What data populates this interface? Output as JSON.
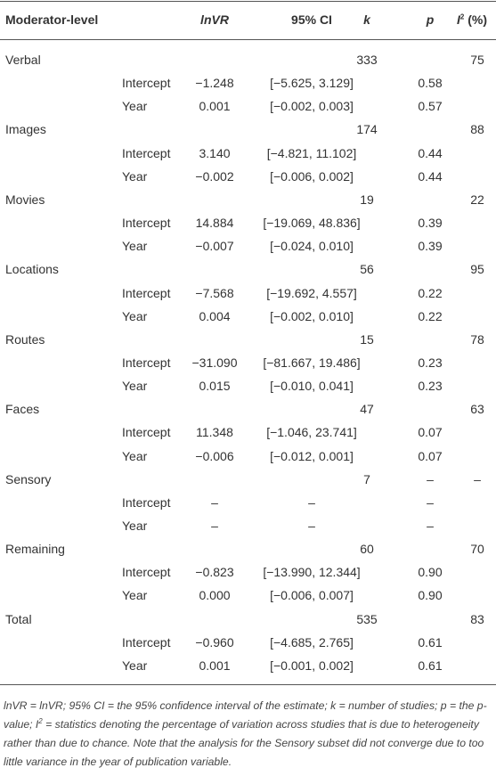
{
  "table": {
    "header": {
      "moderator": "Moderator-level",
      "lnvr": "lnVR",
      "ci": "95% CI",
      "k": "k",
      "p": "p",
      "i2": {
        "main": "I",
        "sup": "2",
        "rest": " (%)"
      }
    },
    "groups": [
      {
        "name": "Verbal",
        "k": "333",
        "i2": "75",
        "rows": [
          {
            "label": "Intercept",
            "lnvr": "−1.248",
            "ci": "[−5.625, 3.129]",
            "p": "0.58"
          },
          {
            "label": "Year",
            "lnvr": "0.001",
            "ci": "[−0.002, 0.003]",
            "p": "0.57"
          }
        ]
      },
      {
        "name": "Images",
        "k": "174",
        "i2": "88",
        "rows": [
          {
            "label": "Intercept",
            "lnvr": "3.140",
            "ci": "[−4.821, 11.102]",
            "p": "0.44"
          },
          {
            "label": "Year",
            "lnvr": "−0.002",
            "ci": "[−0.006, 0.002]",
            "p": "0.44"
          }
        ]
      },
      {
        "name": "Movies",
        "k": "19",
        "i2": "22",
        "rows": [
          {
            "label": "Intercept",
            "lnvr": "14.884",
            "ci": "[−19.069, 48.836]",
            "p": "0.39"
          },
          {
            "label": "Year",
            "lnvr": "−0.007",
            "ci": "[−0.024, 0.010]",
            "p": "0.39"
          }
        ]
      },
      {
        "name": "Locations",
        "k": "56",
        "i2": "95",
        "rows": [
          {
            "label": "Intercept",
            "lnvr": "−7.568",
            "ci": "[−19.692, 4.557]",
            "p": "0.22"
          },
          {
            "label": "Year",
            "lnvr": "0.004",
            "ci": "[−0.002, 0.010]",
            "p": "0.22"
          }
        ]
      },
      {
        "name": "Routes",
        "k": "15",
        "i2": "78",
        "rows": [
          {
            "label": "Intercept",
            "lnvr": "−31.090",
            "ci": "[−81.667, 19.486]",
            "p": "0.23"
          },
          {
            "label": "Year",
            "lnvr": "0.015",
            "ci": "[−0.010, 0.041]",
            "p": "0.23"
          }
        ]
      },
      {
        "name": "Faces",
        "k": "47",
        "i2": "63",
        "rows": [
          {
            "label": "Intercept",
            "lnvr": "11.348",
            "ci": "[−1.046, 23.741]",
            "p": "0.07"
          },
          {
            "label": "Year",
            "lnvr": "−0.006",
            "ci": "[−0.012, 0.001]",
            "p": "0.07"
          }
        ]
      },
      {
        "name": "Sensory",
        "k": "7",
        "p": "–",
        "i2": "–",
        "rows": [
          {
            "label": "Intercept",
            "lnvr": "–",
            "ci": "–",
            "p": "–"
          },
          {
            "label": "Year",
            "lnvr": "–",
            "ci": "–",
            "p": "–"
          }
        ]
      },
      {
        "name": "Remaining",
        "k": "60",
        "i2": "70",
        "rows": [
          {
            "label": "Intercept",
            "lnvr": "−0.823",
            "ci": "[−13.990, 12.344]",
            "p": "0.90"
          },
          {
            "label": "Year",
            "lnvr": "0.000",
            "ci": "[−0.006, 0.007]",
            "p": "0.90"
          }
        ]
      },
      {
        "name": "Total",
        "k": "535",
        "i2": "83",
        "rows": [
          {
            "label": "Intercept",
            "lnvr": "−0.960",
            "ci": "[−4.685, 2.765]",
            "p": "0.61"
          },
          {
            "label": "Year",
            "lnvr": "0.001",
            "ci": "[−0.001, 0.002]",
            "p": "0.61"
          }
        ]
      }
    ]
  },
  "footnote": {
    "before": "lnVR = lnVR; 95% CI = the 95% confidence interval of the estimate; k = number of studies; p = the p-value; I",
    "sup": "2",
    "after": " = statistics denoting the percentage of variation across studies that is due to heterogeneity rather than due to chance. Note that the analysis for the Sensory subset did not converge due to too little variance in the year of publication variable."
  }
}
